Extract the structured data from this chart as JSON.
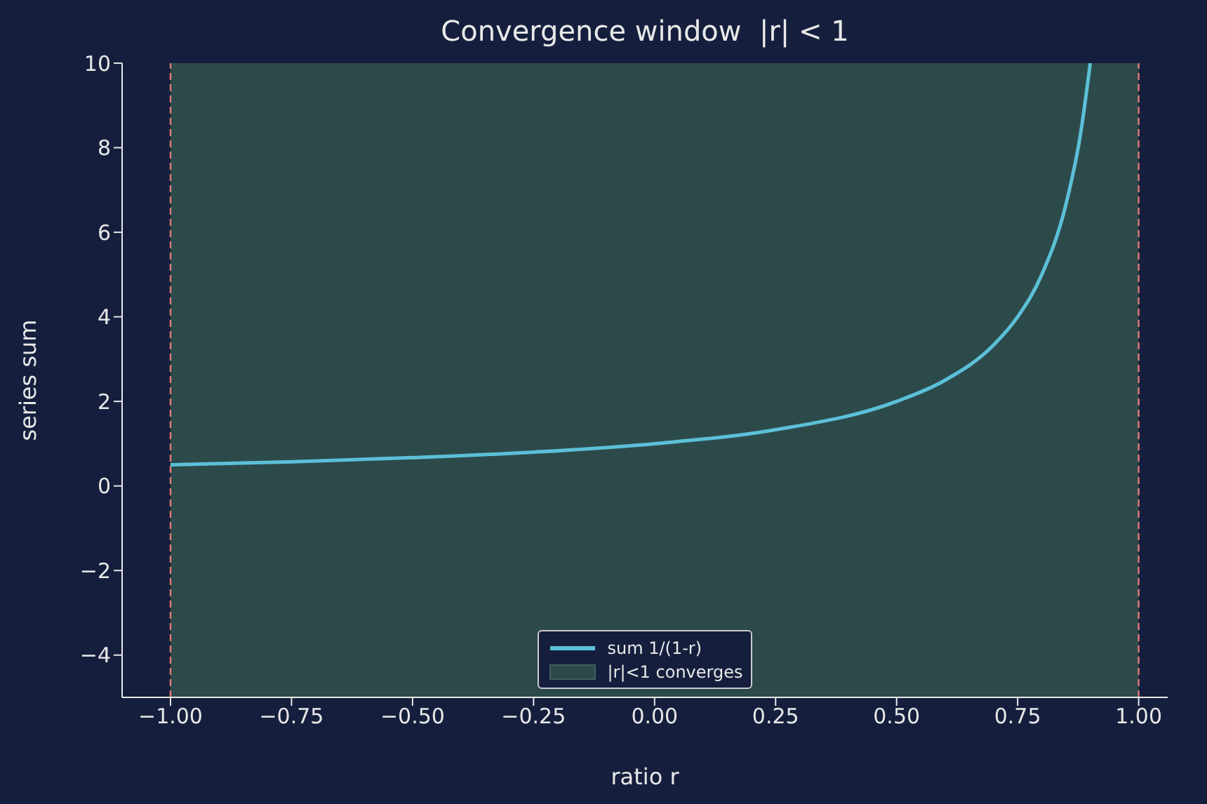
{
  "chart_data": {
    "type": "line",
    "title": "Convergence window  |r| < 1",
    "xlabel": "ratio r",
    "ylabel": "series sum",
    "x": [
      -1,
      -0.75,
      -0.5,
      -0.25,
      0,
      0.25,
      0.5,
      0.6,
      0.7,
      0.75,
      0.8,
      0.85,
      0.88,
      0.9
    ],
    "series": [
      {
        "name": "sum 1/(1-r)",
        "color": "#5bc0d8",
        "values": [
          0.5,
          0.57,
          0.67,
          0.8,
          1,
          1.33,
          2,
          2.5,
          3.33,
          4,
          5,
          6.67,
          8.33,
          10
        ]
      }
    ],
    "xlim": [
      -1.1,
      1.06
    ],
    "xticks": [
      {
        "value": -1,
        "label": "−1.00"
      },
      {
        "value": -0.75,
        "label": "−0.75"
      },
      {
        "value": -0.5,
        "label": "−0.50"
      },
      {
        "value": -0.25,
        "label": "−0.25"
      },
      {
        "value": 0,
        "label": "0.00"
      },
      {
        "value": 0.25,
        "label": "0.25"
      },
      {
        "value": 0.5,
        "label": "0.50"
      },
      {
        "value": 0.75,
        "label": "0.75"
      },
      {
        "value": 1,
        "label": "1.00"
      }
    ],
    "ylim": [
      -5,
      10
    ],
    "yticks": [
      {
        "value": -4,
        "label": "−4"
      },
      {
        "value": -2,
        "label": "−2"
      },
      0,
      2,
      4,
      6,
      8,
      10
    ],
    "ref_lines": [
      {
        "axis": "x",
        "value": -1,
        "color": "#e07a7a",
        "line_style": "dashed"
      },
      {
        "axis": "x",
        "value": 1,
        "color": "#e07a7a",
        "line_style": "dashed"
      }
    ],
    "bands": [
      {
        "axis": "x",
        "from": -1,
        "to": 1,
        "label": "|r|<1 converges",
        "color": "#2d4a4a"
      }
    ],
    "grid": false,
    "legend": "bottom",
    "marker": "none",
    "line_style": "solid"
  }
}
